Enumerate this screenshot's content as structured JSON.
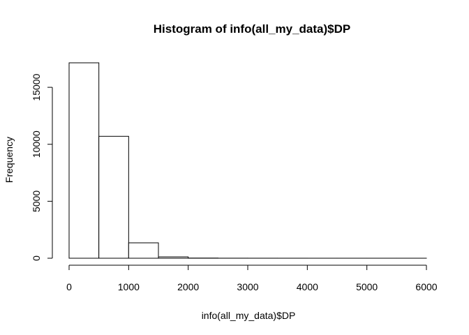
{
  "chart_data": {
    "type": "bar",
    "title": "Histogram of info(all_my_data)$DP",
    "xlabel": "info(all_my_data)$DP",
    "ylabel": "Frequency",
    "bins": [
      {
        "x0": 0,
        "x1": 500,
        "count": 17150
      },
      {
        "x0": 500,
        "x1": 1000,
        "count": 10700
      },
      {
        "x0": 1000,
        "x1": 1500,
        "count": 1350
      },
      {
        "x0": 1500,
        "x1": 2000,
        "count": 120
      },
      {
        "x0": 2000,
        "x1": 2500,
        "count": 15
      },
      {
        "x0": 2500,
        "x1": 3000,
        "count": 5
      },
      {
        "x0": 3000,
        "x1": 3500,
        "count": 3
      },
      {
        "x0": 3500,
        "x1": 4000,
        "count": 2
      },
      {
        "x0": 4000,
        "x1": 4500,
        "count": 1
      },
      {
        "x0": 4500,
        "x1": 5000,
        "count": 1
      },
      {
        "x0": 5000,
        "x1": 5500,
        "count": 1
      },
      {
        "x0": 5500,
        "x1": 6000,
        "count": 1
      }
    ],
    "xticks": [
      0,
      1000,
      2000,
      3000,
      4000,
      5000,
      6000
    ],
    "xtick_labels": [
      "0",
      "1000",
      "2000",
      "3000",
      "4000",
      "5000",
      "6000"
    ],
    "yticks": [
      0,
      5000,
      10000,
      15000
    ],
    "ytick_labels": [
      "0",
      "5000",
      "10000",
      "15000"
    ],
    "xlim": [
      0,
      6000
    ],
    "ylim": [
      0,
      17150
    ],
    "grid": false
  }
}
